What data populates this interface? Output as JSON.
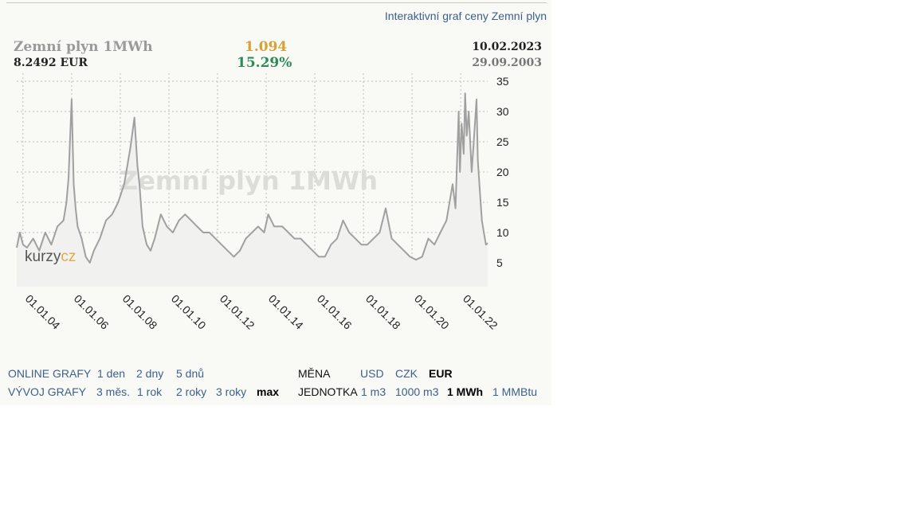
{
  "header": {
    "link": "Interaktivní graf ceny Zemní plyn",
    "name": "Zemní plyn 1MWh",
    "price": "8.2492 EUR",
    "change": "1.094",
    "change_pct": "15.29%",
    "date_end": "10.02.2023",
    "date_start": "29.09.2003"
  },
  "watermark": "Zemní plyn 1MWh",
  "logo": {
    "part1": "kurzy",
    "part2": "cz"
  },
  "colors": {
    "line": "#a0a0a0",
    "grid": "#bdbdbd",
    "change": "#d4a236",
    "pct": "#2e8b57",
    "link": "#3c5f8c"
  },
  "chart_data": {
    "type": "line",
    "x_start": "2003-09-29",
    "x_end": "2023-02-10",
    "x_tick_labels": [
      "01.01.04",
      "01.01.06",
      "01.01.08",
      "01.01.10",
      "01.01.12",
      "01.01.14",
      "01.01.16",
      "01.01.18",
      "01.01.20",
      "01.01.22"
    ],
    "y_tick_labels": [
      "35",
      "30",
      "25",
      "20",
      "15",
      "10",
      "5"
    ],
    "ylim": [
      0,
      36
    ],
    "grid": true,
    "series": [
      {
        "x": [
          "2003-09-29",
          "2003-11-15",
          "2004-01-01",
          "2004-03-01",
          "2004-06-01",
          "2004-09-01",
          "2004-12-01",
          "2005-03-01",
          "2005-06-01",
          "2005-09-01",
          "2005-10-15",
          "2005-11-15",
          "2006-01-01",
          "2006-02-01",
          "2006-03-01",
          "2006-04-01",
          "2006-06-01",
          "2006-08-01",
          "2006-10-01",
          "2006-12-01",
          "2007-03-01",
          "2007-06-01",
          "2007-09-01",
          "2007-12-01",
          "2008-03-01",
          "2008-06-01",
          "2008-08-01",
          "2008-09-15",
          "2008-10-15",
          "2008-12-01",
          "2009-02-01",
          "2009-04-01",
          "2009-06-01",
          "2009-09-01",
          "2009-12-01",
          "2010-03-01",
          "2010-06-01",
          "2010-09-01",
          "2010-12-01",
          "2011-03-01",
          "2011-06-01",
          "2011-09-01",
          "2011-12-01",
          "2012-03-01",
          "2012-06-01",
          "2012-09-01",
          "2012-12-01",
          "2013-03-01",
          "2013-06-01",
          "2013-09-01",
          "2013-12-01",
          "2014-02-01",
          "2014-05-01",
          "2014-09-01",
          "2014-12-01",
          "2015-03-01",
          "2015-06-01",
          "2015-09-01",
          "2015-12-01",
          "2016-03-01",
          "2016-06-01",
          "2016-09-01",
          "2016-12-01",
          "2017-03-01",
          "2017-06-01",
          "2017-09-01",
          "2017-12-01",
          "2018-03-01",
          "2018-06-01",
          "2018-09-01",
          "2018-12-01",
          "2019-03-01",
          "2019-06-01",
          "2019-09-01",
          "2019-12-01",
          "2020-03-01",
          "2020-06-01",
          "2020-09-01",
          "2020-12-01",
          "2021-03-01",
          "2021-06-01",
          "2021-09-01",
          "2021-10-15",
          "2021-12-01",
          "2021-12-21",
          "2022-01-15",
          "2022-02-15",
          "2022-03-08",
          "2022-04-01",
          "2022-05-01",
          "2022-06-15",
          "2022-07-15",
          "2022-08-26",
          "2022-09-15",
          "2022-10-15",
          "2022-11-15",
          "2022-12-15",
          "2023-01-15",
          "2023-02-10"
        ],
        "y": [
          7.5,
          10,
          8,
          7.5,
          9,
          7,
          10,
          8,
          11,
          12,
          15,
          19,
          32,
          18,
          14,
          11,
          9,
          6,
          5,
          7,
          9,
          12,
          13,
          15,
          18,
          24,
          29,
          21,
          18,
          11,
          8,
          7,
          9,
          13,
          11,
          10,
          12,
          13,
          12,
          11,
          10,
          10,
          9,
          8,
          7,
          6,
          7,
          9,
          10,
          11,
          10,
          13,
          11,
          11,
          10,
          9,
          9,
          8,
          7,
          6,
          6,
          8,
          9,
          12,
          10,
          9,
          8,
          8,
          9,
          10,
          14,
          9,
          8,
          7,
          6,
          5.5,
          6,
          9,
          8,
          10,
          12,
          18,
          14,
          30,
          20,
          28,
          23,
          33,
          26,
          30,
          20,
          25,
          32,
          22,
          17,
          12,
          10,
          8,
          8.25
        ]
      }
    ]
  },
  "nav": {
    "online_label": "ONLINE GRAFY",
    "online": [
      "1 den",
      "2 dny",
      "5 dnů"
    ],
    "vyvoj_label": "VÝVOJ GRAFY",
    "vyvoj": [
      "3 měs.",
      "1 rok",
      "2 roky",
      "3 roky",
      "max"
    ],
    "mena_label": "MĚNA",
    "mena": [
      "USD",
      "CZK",
      "EUR"
    ],
    "jednotka_label": "JEDNOTKA",
    "jednotka": [
      "1 m3",
      "1000 m3",
      "1 MWh",
      "1 MMBtu"
    ]
  }
}
